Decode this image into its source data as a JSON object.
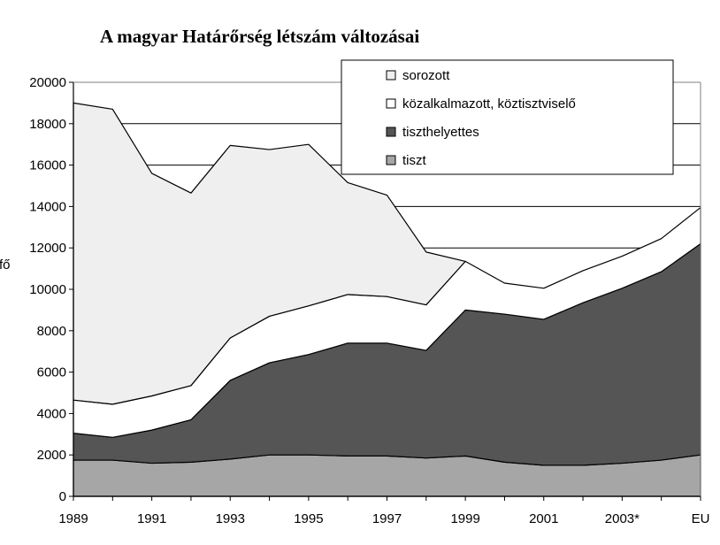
{
  "chart_data": {
    "type": "area",
    "stacked": true,
    "title": "A magyar Határőrség létszám változásai",
    "ylabel": "fő",
    "ylim": [
      0,
      20000
    ],
    "y_ticks": [
      0,
      2000,
      4000,
      6000,
      8000,
      10000,
      12000,
      14000,
      16000,
      18000,
      20000
    ],
    "x_tick_labels": [
      "1989",
      "1991",
      "1993",
      "1995",
      "1997",
      "1999",
      "2001",
      "2003*",
      "EU"
    ],
    "x": [
      "1989",
      "1990",
      "1991",
      "1992",
      "1993",
      "1994",
      "1995",
      "1996",
      "1997",
      "1998",
      "1999",
      "2000",
      "2001",
      "2002",
      "2003*",
      "2004",
      "EU"
    ],
    "grid": "horizontal",
    "legend_position": "top-right",
    "series": [
      {
        "name": "tiszt",
        "color": "#a6a6a6",
        "values": [
          1750,
          1750,
          1600,
          1650,
          1800,
          2000,
          2000,
          1950,
          1950,
          1850,
          1950,
          1650,
          1500,
          1500,
          1600,
          1750,
          2000
        ]
      },
      {
        "name": "tiszthelyettes",
        "color": "#555555",
        "values": [
          1300,
          1100,
          1600,
          2050,
          3800,
          4450,
          4850,
          5450,
          5450,
          5200,
          7050,
          7150,
          7050,
          7850,
          8450,
          9100,
          10200
        ]
      },
      {
        "name": "közalkalmazott, köztisztviselő",
        "color": "#ffffff",
        "values": [
          1600,
          1600,
          1650,
          1650,
          2050,
          2250,
          2350,
          2350,
          2250,
          2200,
          2350,
          1500,
          1500,
          1550,
          1550,
          1600,
          1750
        ]
      },
      {
        "name": "sorozott",
        "color": "#efefef",
        "values": [
          14350,
          14250,
          10750,
          9300,
          9300,
          8050,
          7800,
          5400,
          4900,
          2550,
          0,
          0,
          0,
          0,
          0,
          0,
          0
        ]
      }
    ]
  }
}
